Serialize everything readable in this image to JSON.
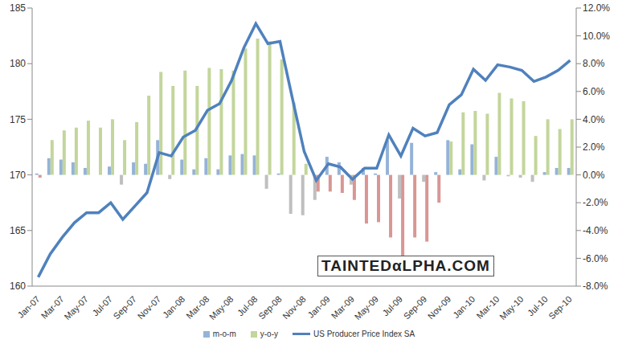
{
  "chart_data": {
    "type": "bar",
    "annotations": [
      "TAINTEDαLPHA.COM"
    ],
    "categories": [
      "Jan-07",
      null,
      "Mar-07",
      null,
      "May-07",
      null,
      "Jul-07",
      null,
      "Sep-07",
      null,
      "Nov-07",
      null,
      "Jan-08",
      null,
      "Mar-08",
      null,
      "May-08",
      null,
      "Jul-08",
      null,
      "Sep-08",
      null,
      "Nov-08",
      null,
      "Jan-09",
      null,
      "Mar-09",
      null,
      "May-09",
      null,
      "Jul-09",
      null,
      "Sep-09",
      null,
      "Nov-09",
      null,
      "Jan-10",
      null,
      "Mar-10",
      null,
      "May-10",
      null,
      "Jul-10",
      null,
      "Sep-10"
    ],
    "series": [
      {
        "name": "m-o-m",
        "type": "bar",
        "axis": "y2",
        "color": "#95b3d7",
        "values": [
          0.1,
          1.2,
          1.1,
          0.9,
          0.5,
          0.0,
          0.6,
          -0.7,
          0.9,
          0.8,
          2.5,
          -0.3,
          1.1,
          0.4,
          1.2,
          0.4,
          1.4,
          1.5,
          1.4,
          -1.0,
          0.1,
          -2.8,
          -2.9,
          -1.8,
          1.3,
          0.9,
          -0.7,
          0.5,
          0.1,
          2.5,
          -1.7,
          2.3,
          -0.5,
          0.2,
          2.5,
          0.4,
          2.2,
          -0.4,
          1.3,
          -0.1,
          -0.2,
          -0.5,
          0.2,
          0.5,
          0.5
        ],
        "colors": [
          "#95b3d7",
          "#95b3d7",
          "#95b3d7",
          "#95b3d7",
          "#95b3d7",
          "#95b3d7",
          "#95b3d7",
          "#bfbfbf",
          "#95b3d7",
          "#95b3d7",
          "#95b3d7",
          "#bfbfbf",
          "#95b3d7",
          "#95b3d7",
          "#95b3d7",
          "#95b3d7",
          "#95b3d7",
          "#95b3d7",
          "#95b3d7",
          "#bfbfbf",
          "#95b3d7",
          "#bfbfbf",
          "#bfbfbf",
          "#bfbfbf",
          "#95b3d7",
          "#95b3d7",
          "#bfbfbf",
          "#95b3d7",
          "#95b3d7",
          "#95b3d7",
          "#bfbfbf",
          "#95b3d7",
          "#bfbfbf",
          "#95b3d7",
          "#95b3d7",
          "#95b3d7",
          "#95b3d7",
          "#bfbfbf",
          "#95b3d7",
          "#bfbfbf",
          "#bfbfbf",
          "#bfbfbf",
          "#95b3d7",
          "#95b3d7",
          "#95b3d7"
        ]
      },
      {
        "name": "y-o-y",
        "type": "bar",
        "axis": "y2",
        "color": "#c3d69b",
        "values": [
          -0.2,
          2.5,
          3.2,
          3.4,
          3.9,
          3.4,
          4.0,
          2.5,
          3.8,
          5.7,
          7.4,
          6.4,
          7.5,
          6.4,
          7.7,
          7.6,
          7.5,
          9.1,
          9.8,
          9.6,
          8.3,
          5.2,
          0.8,
          -1.2,
          -1.2,
          -1.3,
          -1.8,
          -3.5,
          -3.4,
          -4.5,
          -6.6,
          -4.5,
          -4.8,
          -2.0,
          2.4,
          4.5,
          4.6,
          4.4,
          5.9,
          5.5,
          5.3,
          2.8,
          4.0,
          3.3,
          4.0
        ],
        "colors": [
          "#d99694",
          "#c3d69b",
          "#c3d69b",
          "#c3d69b",
          "#c3d69b",
          "#c3d69b",
          "#c3d69b",
          "#c3d69b",
          "#c3d69b",
          "#c3d69b",
          "#c3d69b",
          "#c3d69b",
          "#c3d69b",
          "#c3d69b",
          "#c3d69b",
          "#c3d69b",
          "#c3d69b",
          "#c3d69b",
          "#c3d69b",
          "#c3d69b",
          "#c3d69b",
          "#c3d69b",
          "#c3d69b",
          "#d99694",
          "#d99694",
          "#d99694",
          "#d99694",
          "#d99694",
          "#d99694",
          "#d99694",
          "#d99694",
          "#d99694",
          "#d99694",
          "#d99694",
          "#c3d69b",
          "#c3d69b",
          "#c3d69b",
          "#c3d69b",
          "#c3d69b",
          "#c3d69b",
          "#c3d69b",
          "#c3d69b",
          "#c3d69b",
          "#c3d69b",
          "#c3d69b"
        ]
      },
      {
        "name": "US Producer Price Index SA",
        "type": "line",
        "color": "#4f81bd",
        "values": [
          160.8,
          162.9,
          164.4,
          165.7,
          166.6,
          166.6,
          167.5,
          166.0,
          167.2,
          168.4,
          172.0,
          171.7,
          173.4,
          174.0,
          175.8,
          176.4,
          178.5,
          181.4,
          183.6,
          181.8,
          182.0,
          177.0,
          172.1,
          169.5,
          171.0,
          170.7,
          169.6,
          170.6,
          170.6,
          173.6,
          171.7,
          174.2,
          173.5,
          173.8,
          176.3,
          177.2,
          179.5,
          178.5,
          179.9,
          179.7,
          179.4,
          178.4,
          178.8,
          179.4,
          180.3
        ]
      }
    ],
    "ylim": [
      160,
      185
    ],
    "yticks": [
      160,
      165,
      170,
      175,
      180,
      185
    ],
    "y2lim": [
      -8,
      12
    ],
    "y2ticks": [
      {
        "value": -8,
        "label": "-8.0%"
      },
      {
        "value": -6,
        "label": "-6.0%"
      },
      {
        "value": -4,
        "label": "-4.0%"
      },
      {
        "value": -2,
        "label": "-2.0%"
      },
      {
        "value": 0,
        "label": "0.0%"
      },
      {
        "value": 2,
        "label": "2.0%"
      },
      {
        "value": 4,
        "label": "4.0%"
      },
      {
        "value": 6,
        "label": "6.0%"
      },
      {
        "value": 8,
        "label": "8.0%"
      },
      {
        "value": 10,
        "label": "10.0%"
      },
      {
        "value": 12,
        "label": "12.0%"
      }
    ],
    "grid": false,
    "legend": "bottom"
  }
}
